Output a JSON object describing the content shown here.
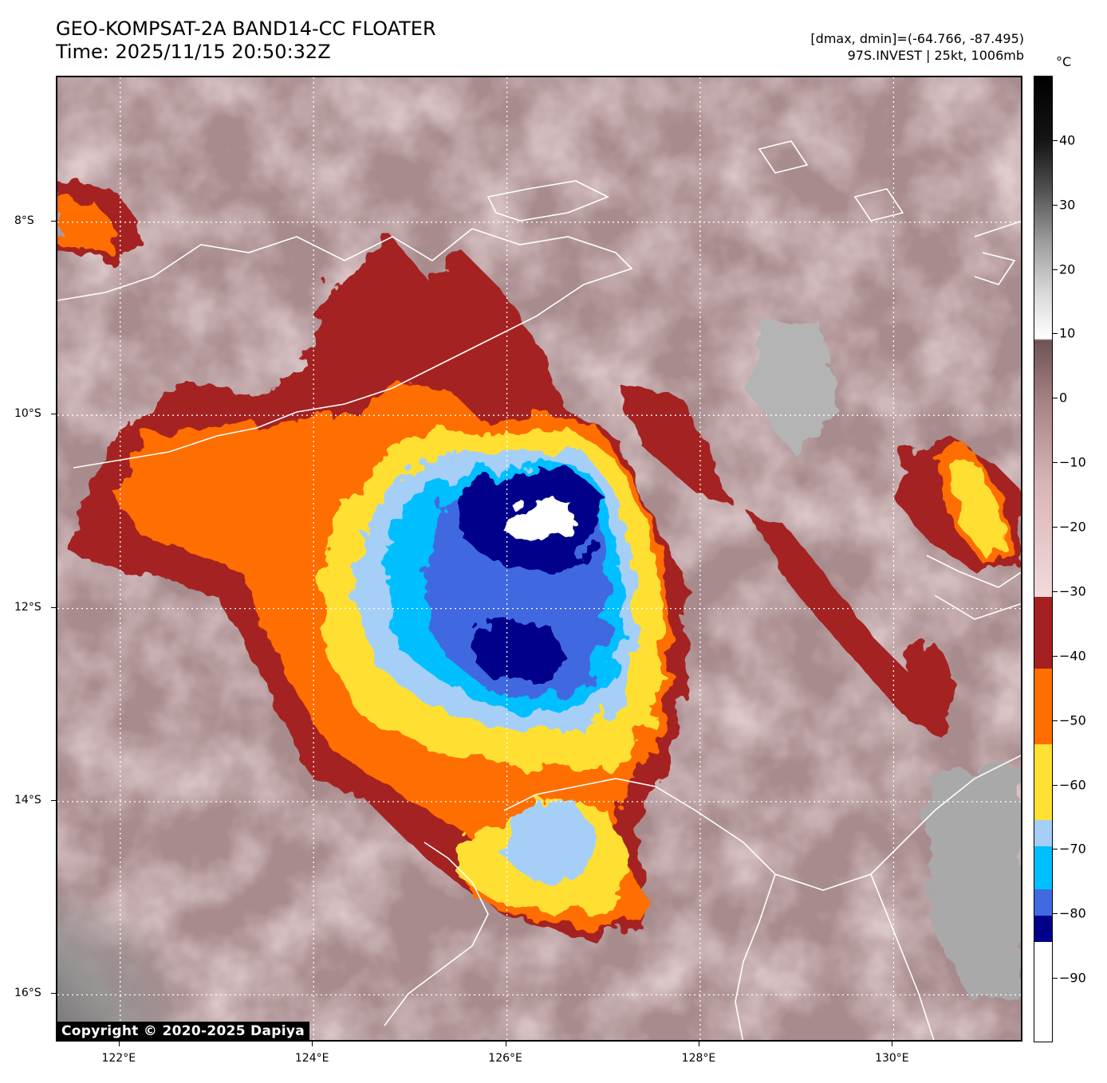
{
  "header": {
    "title_line1": "GEO-KOMPSAT-2A BAND14-CC FLOATER",
    "title_line2": "Time: 2025/11/15 20:50:32Z",
    "info_line1": "[dmax, dmin]=(-64.766, -87.495)",
    "info_line2": "97S.INVEST | 25kt, 1006mb"
  },
  "map": {
    "lon_labels": [
      "122°E",
      "124°E",
      "126°E",
      "128°E",
      "130°E"
    ],
    "lat_labels": [
      "8°S",
      "10°S",
      "12°S",
      "14°S",
      "16°S"
    ],
    "lon_values": [
      122,
      124,
      126,
      128,
      130
    ],
    "lat_values": [
      -8,
      -10,
      -12,
      -14,
      -16
    ],
    "lon_range": [
      121.35,
      131.35
    ],
    "lat_range": [
      -6.5,
      -16.5
    ],
    "gridlines": true,
    "coastline_color": "#ffffff"
  },
  "colorbar": {
    "unit": "°C",
    "labels": [
      "40",
      "30",
      "20",
      "10",
      "0",
      "−10",
      "−20",
      "−30",
      "−40",
      "−50",
      "−60",
      "−70",
      "−80",
      "−90"
    ],
    "values": [
      40,
      30,
      20,
      10,
      0,
      -10,
      -20,
      -30,
      -40,
      -50,
      -60,
      -70,
      -80,
      -90
    ],
    "range": [
      -100,
      50
    ],
    "bands": [
      {
        "from": -35,
        "to": -45,
        "color": "#a52020"
      },
      {
        "from": -45,
        "to": -55,
        "color": "#ff6e00"
      },
      {
        "from": -55,
        "to": -65,
        "color": "#ffe033"
      },
      {
        "from": -65,
        "to": -70,
        "color": "#a6cff8"
      },
      {
        "from": -70,
        "to": -78,
        "color": "#00bfff"
      },
      {
        "from": -78,
        "to": -82,
        "color": "#4169e1"
      },
      {
        "from": -82,
        "to": -86,
        "color": "#00008b"
      },
      {
        "from": -86,
        "to": -100,
        "color": "#ffffff"
      }
    ]
  },
  "copyright": "Copyright © 2020-2025 Dapiya"
}
